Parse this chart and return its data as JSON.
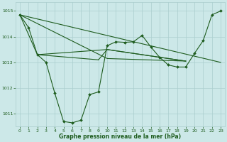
{
  "lines": [
    {
      "x": [
        0,
        1,
        2,
        3,
        4,
        5,
        6,
        7,
        8,
        9,
        10,
        11,
        12,
        13,
        14,
        15,
        16,
        17,
        18,
        19,
        20,
        21,
        22,
        23
      ],
      "y": [
        1014.85,
        1014.35,
        1013.3,
        1013.0,
        1011.8,
        1010.7,
        1010.65,
        1010.75,
        1011.75,
        1011.85,
        1013.65,
        1013.8,
        1013.78,
        1013.8,
        1014.05,
        1013.6,
        1013.2,
        1012.9,
        1012.82,
        1012.82,
        1013.35,
        1013.85,
        1014.85,
        1015.0
      ],
      "marker": true
    },
    {
      "x": [
        0,
        2,
        9,
        23
      ],
      "y": [
        1014.85,
        1013.3,
        1013.1,
        1013.05
      ],
      "marker": false
    },
    {
      "x": [
        0,
        10,
        23
      ],
      "y": [
        1014.85,
        1013.55,
        1013.0
      ],
      "marker": false
    },
    {
      "x": [
        2,
        10,
        19
      ],
      "y": [
        1013.3,
        1013.55,
        1013.05
      ],
      "marker": false
    },
    {
      "x": [
        0,
        9,
        10,
        19
      ],
      "y": [
        1014.85,
        1013.1,
        1013.5,
        1013.05
      ],
      "marker": false
    }
  ],
  "ylim": [
    1010.5,
    1015.35
  ],
  "xlim": [
    -0.5,
    23.5
  ],
  "yticks": [
    1011,
    1012,
    1013,
    1014,
    1015
  ],
  "xtick_labels": [
    "0",
    "1",
    "2",
    "3",
    "4",
    "5",
    "6",
    "7",
    "8",
    "9",
    "10",
    "11",
    "12",
    "13",
    "14",
    "15",
    "16",
    "17",
    "18",
    "19",
    "20",
    "21",
    "22",
    "23"
  ],
  "xlabel": "Graphe pression niveau de la mer (hPa)",
  "background_color": "#cce8e8",
  "grid_color": "#aacece",
  "line_color": "#1e5c1e",
  "tick_fontsize": 4.5,
  "xlabel_fontsize": 5.5
}
